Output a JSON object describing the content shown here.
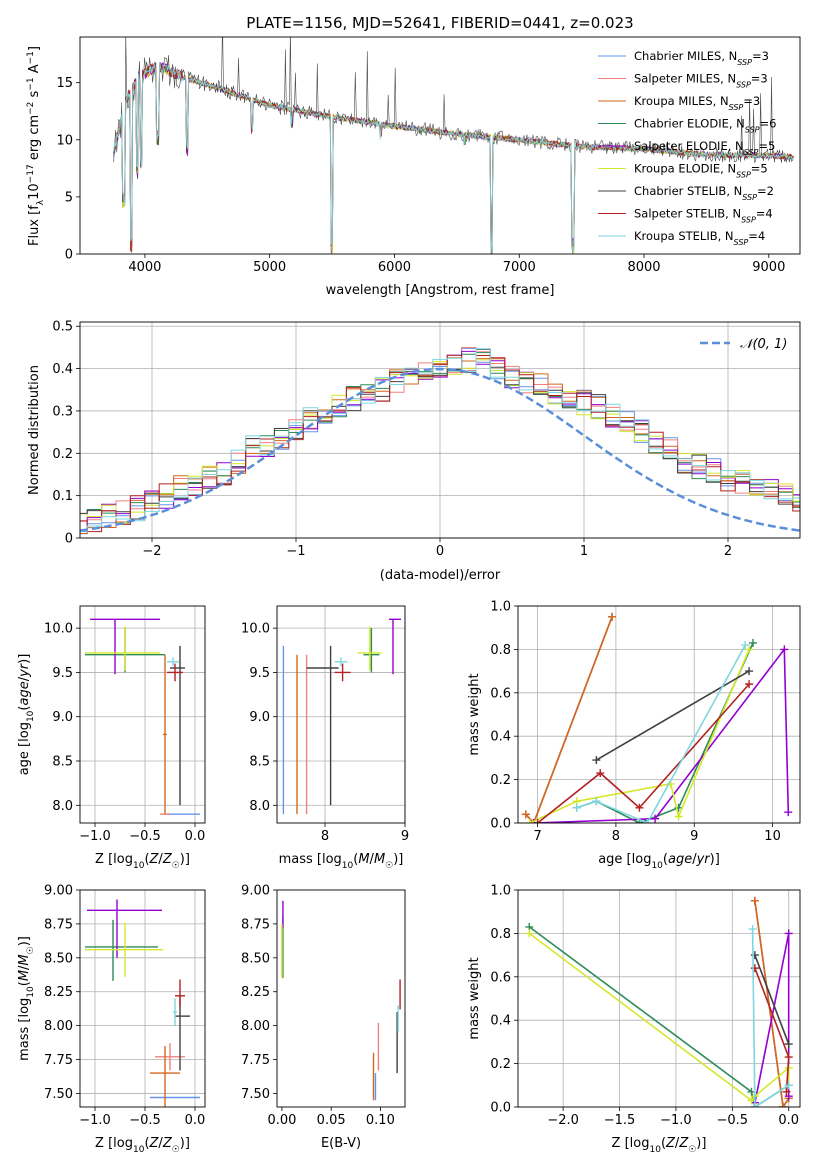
{
  "figure": {
    "title": "PLATE=1156, MJD=52641, FIBERID=0441, z=0.023"
  },
  "series_styles": [
    {
      "name": "Chabrier MILES",
      "nssp": "3",
      "color": "#6495ed"
    },
    {
      "name": "Salpeter MILES",
      "nssp": "3",
      "color": "#f08080"
    },
    {
      "name": "Kroupa MILES",
      "nssp": "3",
      "color": "#d2691e"
    },
    {
      "name": "Chabrier ELODIE",
      "nssp": "6",
      "color": "#2e8b57"
    },
    {
      "name": "Salpeter ELODIE",
      "nssp": "5",
      "color": "#9400d3"
    },
    {
      "name": "Kroupa ELODIE",
      "nssp": "5",
      "color": "#d4e82a"
    },
    {
      "name": "Chabrier STELIB",
      "nssp": "2",
      "color": "#404040"
    },
    {
      "name": "Salpeter STELIB",
      "nssp": "4",
      "color": "#b22222"
    },
    {
      "name": "Kroupa STELIB",
      "nssp": "4",
      "color": "#7fd6e0"
    }
  ],
  "chart_data": [
    {
      "id": "spectrum",
      "type": "line",
      "xlabel": "wavelength [Angstrom, rest frame]",
      "ylabel": "Flux [f_λ 10^-17 erg cm^-2 s^-1 A^-1]",
      "xlim": [
        3480,
        9250
      ],
      "ylim": [
        0,
        19
      ],
      "xticks": [
        4000,
        5000,
        6000,
        7000,
        8000,
        9000
      ],
      "yticks": [
        0,
        5,
        10,
        15
      ],
      "grid": false,
      "legend": "upper-right",
      "continuum": [
        [
          3750,
          9.0
        ],
        [
          3850,
          13.5
        ],
        [
          3950,
          15.5
        ],
        [
          4100,
          16.5
        ],
        [
          4300,
          15.5
        ],
        [
          4600,
          14.5
        ],
        [
          5000,
          13.0
        ],
        [
          5500,
          12.0
        ],
        [
          6000,
          11.2
        ],
        [
          6500,
          10.5
        ],
        [
          7000,
          10.0
        ],
        [
          7500,
          9.4
        ],
        [
          8000,
          9.2
        ],
        [
          8500,
          8.7
        ],
        [
          9000,
          8.6
        ],
        [
          9200,
          8.5
        ]
      ],
      "absorption_spikes": [
        [
          3830,
          4.0
        ],
        [
          3890,
          0
        ],
        [
          3935,
          6.5
        ],
        [
          3970,
          7.5
        ],
        [
          4102,
          9.5
        ],
        [
          4340,
          8.5
        ],
        [
          4860,
          10.5
        ],
        [
          5175,
          11.0
        ],
        [
          5500,
          0
        ],
        [
          5890,
          10.0
        ],
        [
          6563,
          9.5
        ],
        [
          6780,
          0
        ],
        [
          7430,
          0
        ]
      ]
    },
    {
      "id": "residual-histogram",
      "type": "histogram",
      "xlabel": "(data-model)/error",
      "ylabel": "Normed distribution",
      "xlim": [
        -2.5,
        2.5
      ],
      "ylim": [
        0,
        0.51
      ],
      "xticks": [
        -2,
        -1,
        0,
        1,
        2
      ],
      "yticks": [
        0.0,
        0.1,
        0.2,
        0.3,
        0.4,
        0.5
      ],
      "grid": true,
      "legend": "upper-right",
      "reference_curve": {
        "label": "N(0,1)",
        "mean": 0,
        "sigma": 1,
        "color": "#5b8fd9"
      },
      "bin_width": 0.1,
      "envelope": [
        0.04,
        0.04,
        0.05,
        0.06,
        0.07,
        0.09,
        0.1,
        0.12,
        0.13,
        0.14,
        0.15,
        0.18,
        0.22,
        0.22,
        0.23,
        0.26,
        0.28,
        0.3,
        0.31,
        0.33,
        0.34,
        0.35,
        0.37,
        0.38,
        0.39,
        0.4,
        0.41,
        0.42,
        0.43,
        0.4,
        0.38,
        0.37,
        0.36,
        0.34,
        0.33,
        0.32,
        0.31,
        0.29,
        0.27,
        0.25,
        0.22,
        0.21,
        0.18,
        0.17,
        0.16,
        0.14,
        0.13,
        0.12,
        0.11,
        0.1,
        0.09,
        0.08,
        0.08,
        0.07,
        0.07,
        0.06,
        0.06,
        0.05,
        0.05,
        0.05,
        0.04
      ]
    },
    {
      "id": "age-vs-Z",
      "type": "scatter",
      "xlabel": "Z [log10(Z/Z☉)]",
      "ylabel": "age [log10(age/yr)]",
      "xlim": [
        -1.15,
        0.1
      ],
      "ylim": [
        7.8,
        10.25
      ],
      "xticks": [
        -1.0,
        -0.5,
        0.0
      ],
      "yticks": [
        8.0,
        8.5,
        9.0,
        9.5,
        10.0
      ],
      "grid": true,
      "errorbars": [
        {
          "s": 0,
          "x": -0.1,
          "xerr": [
            0.2,
            0.15
          ],
          "y": 7.9,
          "yerr": [
            0.0,
            0.0
          ]
        },
        {
          "s": 1,
          "x": -0.3,
          "xerr": [
            0.05,
            0.05
          ],
          "y": 7.9,
          "yerr": [
            0.0,
            0.0
          ]
        },
        {
          "s": 2,
          "x": -0.3,
          "xerr": [
            0.02,
            0.02
          ],
          "y": 8.8,
          "yerr": [
            0.9,
            0.9
          ]
        },
        {
          "s": 3,
          "x": -0.7,
          "xerr": [
            0.4,
            0.4
          ],
          "y": 9.7,
          "yerr": [
            0.2,
            0.3
          ]
        },
        {
          "s": 4,
          "x": -0.8,
          "xerr": [
            0.25,
            0.45
          ],
          "y": 10.1,
          "yerr": [
            0.62,
            0.0
          ]
        },
        {
          "s": 5,
          "x": -0.7,
          "xerr": [
            0.4,
            0.35
          ],
          "y": 9.72,
          "yerr": [
            0.2,
            0.3
          ]
        },
        {
          "s": 6,
          "x": -0.15,
          "xerr": [
            0.1,
            0.05
          ],
          "y": 9.55,
          "yerr": [
            1.55,
            0.25
          ]
        },
        {
          "s": 7,
          "x": -0.2,
          "xerr": [
            0.08,
            0.08
          ],
          "y": 9.5,
          "yerr": [
            0.1,
            0.1
          ]
        },
        {
          "s": 8,
          "x": -0.22,
          "xerr": [
            0.06,
            0.06
          ],
          "y": 9.62,
          "yerr": [
            0.05,
            0.05
          ]
        }
      ]
    },
    {
      "id": "age-vs-mass",
      "type": "scatter",
      "xlabel": "mass [log10(M/M☉)]",
      "ylabel": "",
      "xlim": [
        7.4,
        9.0
      ],
      "ylim": [
        7.8,
        10.25
      ],
      "xticks": [
        8,
        9
      ],
      "yticks": [
        8.0,
        8.5,
        9.0,
        9.5,
        10.0
      ],
      "grid": true,
      "errorbars": [
        {
          "s": 0,
          "x": 7.48,
          "xerr": [
            0.0,
            0.0
          ],
          "y": 8.85,
          "yerr": [
            0.95,
            0.95
          ]
        },
        {
          "s": 1,
          "x": 7.77,
          "xerr": [
            0.0,
            0.0
          ],
          "y": 8.8,
          "yerr": [
            0.9,
            0.9
          ]
        },
        {
          "s": 2,
          "x": 7.65,
          "xerr": [
            0.0,
            0.0
          ],
          "y": 8.8,
          "yerr": [
            0.9,
            0.9
          ]
        },
        {
          "s": 3,
          "x": 8.58,
          "xerr": [
            0.1,
            0.1
          ],
          "y": 9.7,
          "yerr": [
            0.2,
            0.3
          ]
        },
        {
          "s": 4,
          "x": 8.85,
          "xerr": [
            0.05,
            0.1
          ],
          "y": 10.1,
          "yerr": [
            0.62,
            0.0
          ]
        },
        {
          "s": 5,
          "x": 8.56,
          "xerr": [
            0.15,
            0.15
          ],
          "y": 9.72,
          "yerr": [
            0.2,
            0.3
          ]
        },
        {
          "s": 6,
          "x": 8.07,
          "xerr": [
            0.3,
            0.1
          ],
          "y": 9.55,
          "yerr": [
            1.55,
            0.25
          ]
        },
        {
          "s": 7,
          "x": 8.22,
          "xerr": [
            0.1,
            0.1
          ],
          "y": 9.5,
          "yerr": [
            0.1,
            0.1
          ]
        },
        {
          "s": 8,
          "x": 8.2,
          "xerr": [
            0.08,
            0.08
          ],
          "y": 9.62,
          "yerr": [
            0.05,
            0.05
          ]
        }
      ]
    },
    {
      "id": "weight-vs-age",
      "type": "line",
      "xlabel": "age [log10(age/yr)]",
      "ylabel": "mass weight",
      "xlim": [
        6.75,
        10.35
      ],
      "ylim": [
        0.0,
        1.0
      ],
      "xticks": [
        7,
        8,
        9,
        10
      ],
      "yticks": [
        0.0,
        0.2,
        0.4,
        0.6,
        0.8,
        1.0
      ],
      "grid": true,
      "series": [
        {
          "s": 0,
          "x": [
            6.85,
            6.95,
            7.95
          ],
          "y": [
            0.04,
            0.0,
            0.95
          ]
        },
        {
          "s": 1,
          "x": [
            6.85,
            6.95,
            7.95
          ],
          "y": [
            0.04,
            0.0,
            0.95
          ]
        },
        {
          "s": 2,
          "x": [
            6.85,
            6.95,
            7.95
          ],
          "y": [
            0.04,
            0.0,
            0.95
          ]
        },
        {
          "s": 3,
          "x": [
            7.5,
            7.75,
            8.3,
            8.8,
            9.75
          ],
          "y": [
            0.07,
            0.1,
            0.0,
            0.07,
            0.83
          ]
        },
        {
          "s": 4,
          "x": [
            6.95,
            8.5,
            10.15,
            10.2
          ],
          "y": [
            0.0,
            0.02,
            0.8,
            0.05
          ]
        },
        {
          "s": 5,
          "x": [
            6.9,
            7.5,
            8.7,
            8.8,
            9.7
          ],
          "y": [
            0.0,
            0.1,
            0.18,
            0.03,
            0.8
          ]
        },
        {
          "s": 6,
          "x": [
            7.75,
            9.7
          ],
          "y": [
            0.29,
            0.7
          ]
        },
        {
          "s": 7,
          "x": [
            7.0,
            7.8,
            8.3,
            9.7
          ],
          "y": [
            0.0,
            0.23,
            0.07,
            0.64
          ]
        },
        {
          "s": 8,
          "x": [
            7.5,
            7.75,
            8.4,
            9.65
          ],
          "y": [
            0.07,
            0.1,
            0.0,
            0.82
          ]
        }
      ]
    },
    {
      "id": "mass-vs-Z",
      "type": "scatter",
      "xlabel": "Z [log10(Z/Z☉)]",
      "ylabel": "mass [log10(M/M☉)]",
      "xlim": [
        -1.15,
        0.1
      ],
      "ylim": [
        7.4,
        9.0
      ],
      "xticks": [
        -1.0,
        -0.5,
        0.0
      ],
      "yticks": [
        7.5,
        7.75,
        8.0,
        8.25,
        8.5,
        8.75,
        9.0
      ],
      "grid": true,
      "errorbars": [
        {
          "s": 0,
          "x": -0.2,
          "xerr": [
            0.25,
            0.25
          ],
          "y": 7.47,
          "yerr": [
            0.0,
            0.0
          ]
        },
        {
          "s": 1,
          "x": -0.25,
          "xerr": [
            0.15,
            0.15
          ],
          "y": 7.77,
          "yerr": [
            0.1,
            0.1
          ]
        },
        {
          "s": 2,
          "x": -0.3,
          "xerr": [
            0.15,
            0.15
          ],
          "y": 7.65,
          "yerr": [
            0.25,
            0.2
          ]
        },
        {
          "s": 3,
          "x": -0.82,
          "xerr": [
            0.28,
            0.45
          ],
          "y": 8.58,
          "yerr": [
            0.25,
            0.2
          ]
        },
        {
          "s": 4,
          "x": -0.78,
          "xerr": [
            0.3,
            0.45
          ],
          "y": 8.85,
          "yerr": [
            0.35,
            0.08
          ]
        },
        {
          "s": 5,
          "x": -0.7,
          "xerr": [
            0.4,
            0.38
          ],
          "y": 8.56,
          "yerr": [
            0.2,
            0.2
          ]
        },
        {
          "s": 6,
          "x": -0.15,
          "xerr": [
            0.05,
            0.1
          ],
          "y": 8.07,
          "yerr": [
            0.4,
            0.15
          ]
        },
        {
          "s": 7,
          "x": -0.15,
          "xerr": [
            0.05,
            0.05
          ],
          "y": 8.22,
          "yerr": [
            0.08,
            0.12
          ]
        },
        {
          "s": 8,
          "x": -0.2,
          "xerr": [
            0.02,
            0.02
          ],
          "y": 8.1,
          "yerr": [
            0.1,
            0.1
          ]
        }
      ]
    },
    {
      "id": "mass-vs-ebv",
      "type": "scatter",
      "xlabel": "E(B-V)",
      "ylabel": "",
      "xlim": [
        -0.005,
        0.125
      ],
      "ylim": [
        7.4,
        9.0
      ],
      "xticks": [
        0.0,
        0.05,
        0.1
      ],
      "yticks": [
        7.5,
        7.75,
        8.0,
        8.25,
        8.5,
        8.75,
        9.0
      ],
      "grid": false,
      "errorbars": [
        {
          "s": 0,
          "x": 0.095,
          "xerr": [
            0.0,
            0.0
          ],
          "y": 7.55,
          "yerr": [
            0.1,
            0.1
          ]
        },
        {
          "s": 1,
          "x": 0.098,
          "xerr": [
            0.0,
            0.0
          ],
          "y": 7.82,
          "yerr": [
            0.15,
            0.2
          ]
        },
        {
          "s": 2,
          "x": 0.093,
          "xerr": [
            0.0,
            0.0
          ],
          "y": 7.65,
          "yerr": [
            0.2,
            0.15
          ]
        },
        {
          "s": 3,
          "x": 0.001,
          "xerr": [
            0.0,
            0.0
          ],
          "y": 8.6,
          "yerr": [
            0.25,
            0.2
          ]
        },
        {
          "s": 4,
          "x": 0.001,
          "xerr": [
            0.0,
            0.0
          ],
          "y": 8.82,
          "yerr": [
            0.1,
            0.1
          ]
        },
        {
          "s": 5,
          "x": 0.0,
          "xerr": [
            0.0,
            0.0
          ],
          "y": 8.55,
          "yerr": [
            0.2,
            0.2
          ]
        },
        {
          "s": 6,
          "x": 0.117,
          "xerr": [
            0.0,
            0.0
          ],
          "y": 7.95,
          "yerr": [
            0.3,
            0.15
          ]
        },
        {
          "s": 7,
          "x": 0.12,
          "xerr": [
            0.0,
            0.0
          ],
          "y": 8.22,
          "yerr": [
            0.1,
            0.12
          ]
        },
        {
          "s": 8,
          "x": 0.118,
          "xerr": [
            0.0,
            0.0
          ],
          "y": 8.05,
          "yerr": [
            0.1,
            0.1
          ]
        }
      ]
    },
    {
      "id": "weight-vs-Z",
      "type": "line",
      "xlabel": "Z [log10(Z/Z☉)]",
      "ylabel": "mass weight",
      "xlim": [
        -2.4,
        0.1
      ],
      "ylim": [
        0.0,
        1.0
      ],
      "xticks": [
        -2.0,
        -1.5,
        -1.0,
        -0.5,
        0.0
      ],
      "yticks": [
        0.0,
        0.2,
        0.4,
        0.6,
        0.8,
        1.0
      ],
      "grid": true,
      "series": [
        {
          "s": 0,
          "x": [
            -0.3,
            -0.05,
            0.0
          ],
          "y": [
            0.95,
            0.0,
            0.04
          ]
        },
        {
          "s": 1,
          "x": [
            -0.3,
            -0.05,
            0.0
          ],
          "y": [
            0.95,
            0.0,
            0.04
          ]
        },
        {
          "s": 2,
          "x": [
            -0.3,
            -0.05,
            0.0
          ],
          "y": [
            0.95,
            0.0,
            0.04
          ]
        },
        {
          "s": 3,
          "x": [
            -2.3,
            -0.33,
            -0.3,
            0.0
          ],
          "y": [
            0.83,
            0.07,
            0.0,
            0.1
          ]
        },
        {
          "s": 4,
          "x": [
            -0.3,
            -0.0,
            0.0
          ],
          "y": [
            0.02,
            0.8,
            0.05
          ]
        },
        {
          "s": 5,
          "x": [
            -2.3,
            -0.33,
            -0.3,
            0.0,
            0.0
          ],
          "y": [
            0.8,
            0.03,
            0.05,
            0.18,
            0.1
          ]
        },
        {
          "s": 6,
          "x": [
            -0.3,
            0.0
          ],
          "y": [
            0.7,
            0.29
          ]
        },
        {
          "s": 7,
          "x": [
            -0.3,
            0.0,
            -0.02
          ],
          "y": [
            0.64,
            0.23,
            0.07
          ]
        },
        {
          "s": 8,
          "x": [
            -0.32,
            -0.3,
            0.0
          ],
          "y": [
            0.82,
            0.0,
            0.1
          ]
        }
      ]
    }
  ]
}
